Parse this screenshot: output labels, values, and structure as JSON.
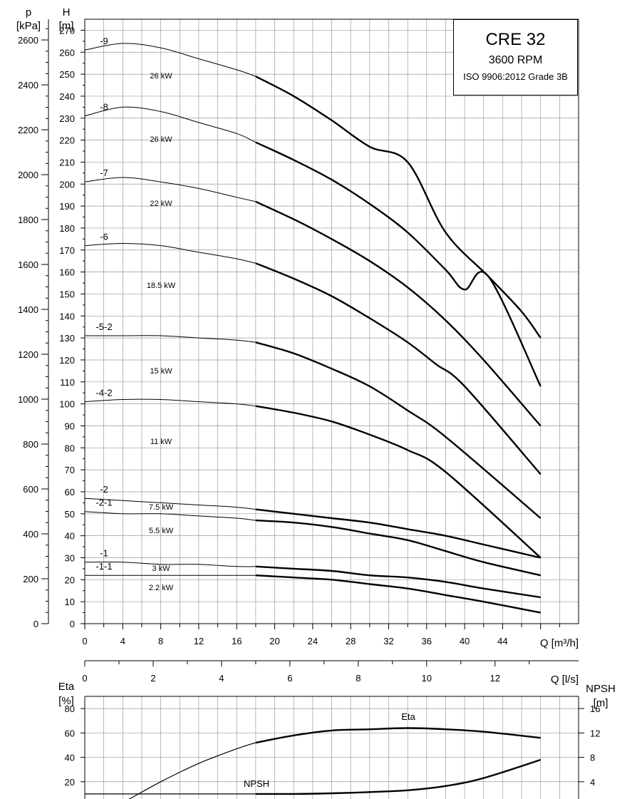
{
  "title_box": {
    "model": "CRE 32",
    "speed": "3600 RPM",
    "standard": "ISO 9906:2012 Grade 3B"
  },
  "axes": {
    "p_label": "p",
    "p_unit": "[kPa]",
    "h_label": "H",
    "h_unit": "[m]",
    "q_m3h_label": "Q [m³/h]",
    "q_ls_label": "Q [l/s]",
    "eta_label": "Eta",
    "eta_unit": "[%]",
    "npsh_label": "NPSH",
    "npsh_unit": "[m]"
  },
  "chart_data": [
    {
      "type": "line",
      "name": "head",
      "x_label": "Q [m³/h]",
      "secondary_x_label": "Q [l/s]",
      "y_label": "H [m]",
      "secondary_y_label": "p [kPa]",
      "xlim": [
        0,
        52
      ],
      "ylim": [
        0,
        275
      ],
      "x_ticks": [
        0,
        4,
        8,
        12,
        16,
        20,
        24,
        28,
        32,
        36,
        40,
        44
      ],
      "y_ticks": [
        0,
        10,
        20,
        30,
        40,
        50,
        60,
        70,
        80,
        90,
        100,
        110,
        120,
        130,
        140,
        150,
        160,
        170,
        180,
        190,
        200,
        210,
        220,
        230,
        240,
        250,
        260,
        270
      ],
      "p_ticks": [
        0,
        200,
        400,
        600,
        800,
        1000,
        1200,
        1400,
        1600,
        1800,
        2000,
        2200,
        2400,
        2600
      ],
      "ls_ticks": [
        0,
        2,
        4,
        6,
        8,
        10,
        12
      ],
      "grid": true,
      "operating_range_start_q": 18,
      "series": [
        {
          "name": "-9",
          "power": "26 kW",
          "x": [
            0,
            4,
            8,
            12,
            16,
            18,
            22,
            26,
            30,
            34,
            38,
            42.5,
            46,
            48
          ],
          "y": [
            261,
            264,
            262,
            257,
            252,
            249,
            240,
            229,
            217,
            210,
            178,
            158,
            142,
            130
          ]
        },
        {
          "name": "-8",
          "power": "26 kW",
          "x": [
            0,
            4,
            8,
            12,
            16,
            18,
            22,
            26,
            30,
            34,
            38,
            40,
            42.5,
            48
          ],
          "y": [
            231,
            235,
            233,
            228,
            223,
            219,
            211,
            202,
            191,
            178,
            161,
            152,
            158,
            108
          ]
        },
        {
          "name": "-7",
          "power": "22 kW",
          "x": [
            0,
            4,
            8,
            12,
            16,
            18,
            22,
            26,
            30,
            34,
            38,
            42,
            48
          ],
          "y": [
            201,
            203,
            201,
            198,
            194,
            192,
            184,
            175,
            165,
            153,
            138,
            120,
            90
          ]
        },
        {
          "name": "-6",
          "power": "18.5 kW",
          "x": [
            0,
            4,
            8,
            12,
            16,
            18,
            22,
            26,
            30,
            34,
            37,
            40,
            48
          ],
          "y": [
            172,
            173,
            172,
            169,
            166,
            164,
            157,
            149,
            139,
            128,
            118,
            108,
            68
          ]
        },
        {
          "name": "-5-2",
          "power": "15 kW",
          "x": [
            0,
            4,
            8,
            12,
            16,
            18,
            22,
            26,
            30,
            34,
            38,
            48
          ],
          "y": [
            131,
            131,
            131,
            130,
            129,
            128,
            123,
            116,
            108,
            97,
            85,
            48
          ]
        },
        {
          "name": "-4-2",
          "power": "11 kW",
          "x": [
            0,
            4,
            8,
            12,
            16,
            18,
            22,
            26,
            30,
            34,
            38,
            48
          ],
          "y": [
            101,
            102,
            102,
            101,
            100,
            99,
            96,
            92,
            86,
            79,
            69,
            30
          ]
        },
        {
          "name": "-2",
          "power": "7.5 kW",
          "x": [
            0,
            4,
            8,
            12,
            16,
            18,
            22,
            26,
            30,
            34,
            38,
            42,
            48
          ],
          "y": [
            57,
            56,
            55,
            54,
            53,
            52,
            50,
            48,
            46,
            43,
            40,
            36,
            30
          ]
        },
        {
          "name": "-2-1",
          "power": "5.5 kW",
          "x": [
            0,
            4,
            8,
            12,
            16,
            18,
            22,
            26,
            30,
            34,
            38,
            42,
            48
          ],
          "y": [
            51,
            50,
            50,
            49,
            48,
            47,
            46,
            44,
            41,
            38,
            33,
            28,
            22
          ]
        },
        {
          "name": "-1",
          "power": "3 kW",
          "x": [
            0,
            4,
            8,
            12,
            16,
            18,
            22,
            26,
            30,
            34,
            38,
            42,
            48
          ],
          "y": [
            28,
            28,
            27,
            27,
            26,
            26,
            25,
            24,
            22,
            21,
            19,
            16,
            12
          ]
        },
        {
          "name": "-1-1",
          "power": "2.2 kW",
          "x": [
            0,
            4,
            8,
            12,
            16,
            18,
            22,
            26,
            30,
            34,
            38,
            42,
            48
          ],
          "y": [
            22,
            22,
            22,
            22,
            22,
            22,
            21,
            20,
            18,
            16,
            13,
            10,
            5
          ]
        }
      ]
    },
    {
      "type": "line",
      "name": "efficiency",
      "xlim": [
        0,
        52
      ],
      "eta_ylim": [
        0,
        90
      ],
      "npsh_ylim": [
        0,
        18
      ],
      "eta_ticks": [
        20,
        40,
        60,
        80
      ],
      "npsh_ticks": [
        4,
        8,
        12,
        16
      ],
      "grid": true,
      "series": [
        {
          "name": "Eta",
          "axis": "eta",
          "x": [
            1.5,
            4,
            8,
            12,
            16,
            18,
            22,
            26,
            30,
            34,
            38,
            42,
            48
          ],
          "y": [
            -5,
            3,
            20,
            35,
            47,
            52,
            58,
            62,
            63,
            64,
            63,
            61,
            56
          ]
        },
        {
          "name": "NPSH",
          "axis": "npsh",
          "x": [
            0,
            4,
            8,
            12,
            16,
            18,
            22,
            26,
            30,
            34,
            38,
            42,
            48
          ],
          "y": [
            2,
            2,
            2,
            2,
            2,
            2,
            2,
            2.1,
            2.3,
            2.6,
            3.3,
            4.6,
            7.6
          ]
        }
      ]
    }
  ]
}
